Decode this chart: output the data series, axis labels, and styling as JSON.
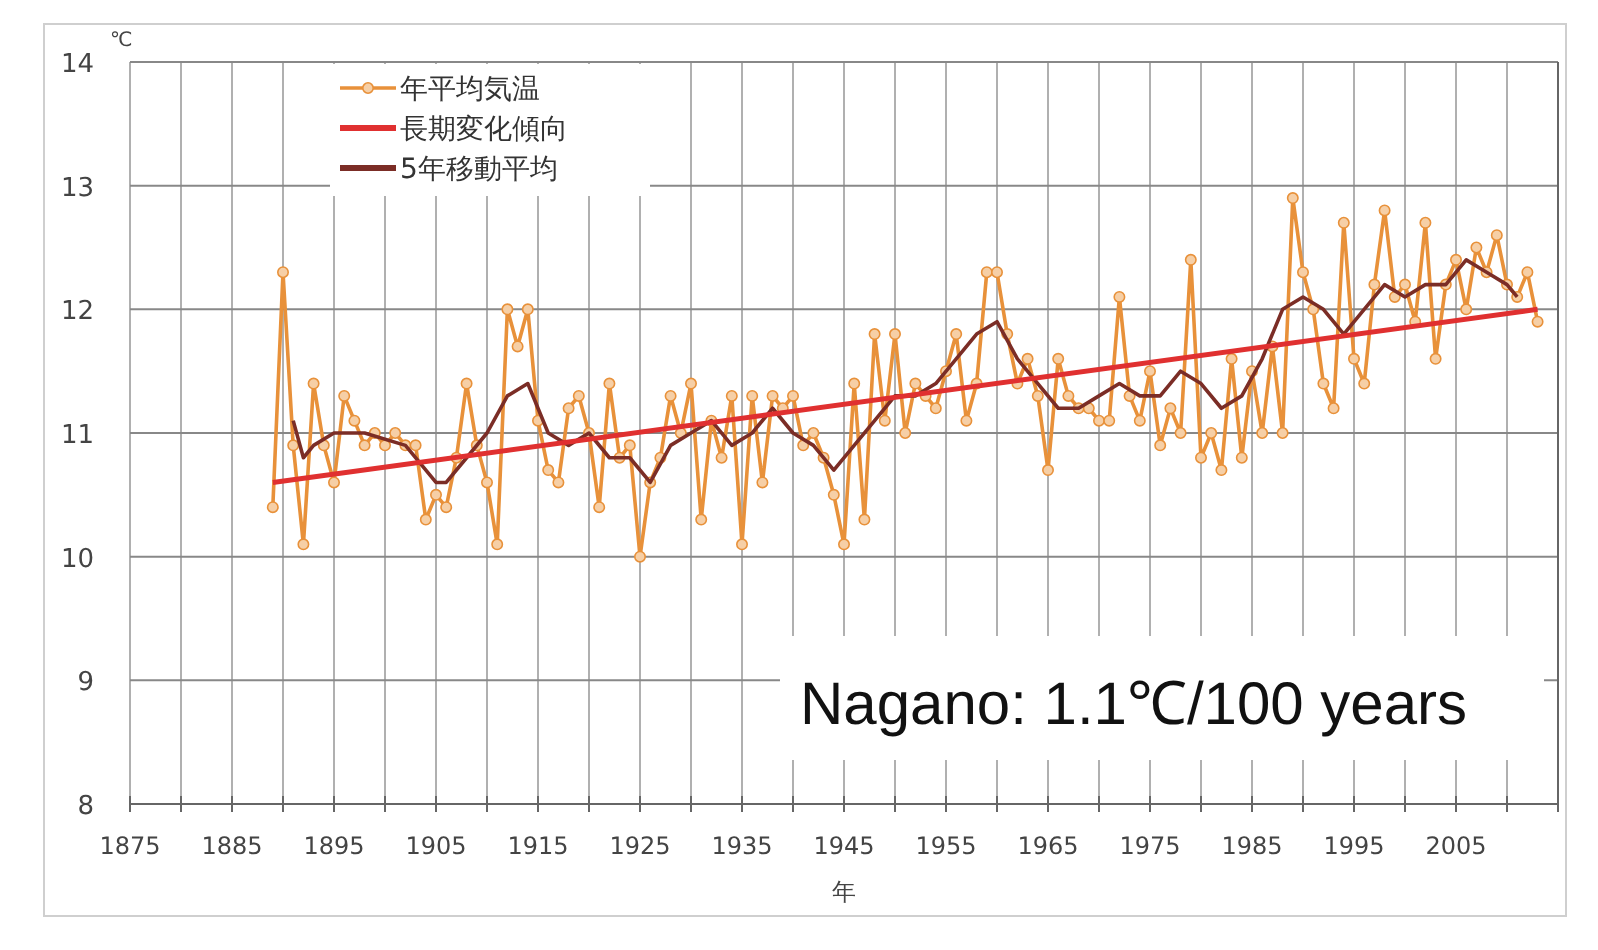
{
  "chart_data": {
    "type": "line",
    "ylabel": "℃",
    "xlabel": "年",
    "annotations": [
      "Nagano: 1.1℃/100 years"
    ],
    "xlim": [
      1875,
      2015
    ],
    "xticks": [
      1875,
      {
        "value": 1880,
        "label": null
      },
      1885,
      {
        "value": 1890,
        "label": null
      },
      1895,
      {
        "value": 1900,
        "label": null
      },
      1905,
      {
        "value": 1910,
        "label": null
      },
      1915,
      {
        "value": 1920,
        "label": null
      },
      1925,
      {
        "value": 1930,
        "label": null
      },
      1935,
      {
        "value": 1940,
        "label": null
      },
      1945,
      {
        "value": 1950,
        "label": null
      },
      1955,
      {
        "value": 1960,
        "label": null
      },
      1965,
      {
        "value": 1970,
        "label": null
      },
      1975,
      {
        "value": 1980,
        "label": null
      },
      1985,
      {
        "value": 1990,
        "label": null
      },
      1995,
      {
        "value": 2000,
        "label": null
      },
      2005,
      {
        "value": 2010,
        "label": null
      },
      {
        "value": 2015,
        "label": null
      }
    ],
    "ylim": [
      8,
      14
    ],
    "yticks": [
      8,
      9,
      10,
      11,
      12,
      13,
      14
    ],
    "grid": true,
    "legend": "top left",
    "line_style": "solid",
    "series": [
      {
        "name": "年平均気温",
        "color": "#e8913a",
        "marker": "circle",
        "x": [
          1889,
          1890,
          1891,
          1892,
          1893,
          1894,
          1895,
          1896,
          1897,
          1898,
          1899,
          1900,
          1901,
          1902,
          1903,
          1904,
          1905,
          1906,
          1907,
          1908,
          1909,
          1910,
          1911,
          1912,
          1913,
          1914,
          1915,
          1916,
          1917,
          1918,
          1919,
          1920,
          1921,
          1922,
          1923,
          1924,
          1925,
          1926,
          1927,
          1928,
          1929,
          1930,
          1931,
          1932,
          1933,
          1934,
          1935,
          1936,
          1937,
          1938,
          1939,
          1940,
          1941,
          1942,
          1943,
          1944,
          1945,
          1946,
          1947,
          1948,
          1949,
          1950,
          1951,
          1952,
          1953,
          1954,
          1955,
          1956,
          1957,
          1958,
          1959,
          1960,
          1961,
          1962,
          1963,
          1964,
          1965,
          1966,
          1967,
          1968,
          1969,
          1970,
          1971,
          1972,
          1973,
          1974,
          1975,
          1976,
          1977,
          1978,
          1979,
          1980,
          1981,
          1982,
          1983,
          1984,
          1985,
          1986,
          1987,
          1988,
          1989,
          1990,
          1991,
          1992,
          1993,
          1994,
          1995,
          1996,
          1997,
          1998,
          1999,
          2000,
          2001,
          2002,
          2003,
          2004,
          2005,
          2006,
          2007,
          2008,
          2009,
          2010,
          2011,
          2012,
          2013
        ],
        "values": [
          10.4,
          12.3,
          10.9,
          10.1,
          11.4,
          10.9,
          10.6,
          11.3,
          11.1,
          10.9,
          11.0,
          10.9,
          11.0,
          10.9,
          10.9,
          10.3,
          10.5,
          10.4,
          10.8,
          11.4,
          10.9,
          10.6,
          10.1,
          12.0,
          11.7,
          12.0,
          11.1,
          10.7,
          10.6,
          11.2,
          11.3,
          11.0,
          10.4,
          11.4,
          10.8,
          10.9,
          10.0,
          10.6,
          10.8,
          11.3,
          11.0,
          11.4,
          10.3,
          11.1,
          10.8,
          11.3,
          10.1,
          11.3,
          10.6,
          11.3,
          11.2,
          11.3,
          10.9,
          11.0,
          10.8,
          10.5,
          10.1,
          11.4,
          10.3,
          11.8,
          11.1,
          11.8,
          11.0,
          11.4,
          11.3,
          11.2,
          11.5,
          11.8,
          11.1,
          11.4,
          12.3,
          12.3,
          11.8,
          11.4,
          11.6,
          11.3,
          10.7,
          11.6,
          11.3,
          11.2,
          11.2,
          11.1,
          11.1,
          12.1,
          11.3,
          11.1,
          11.5,
          10.9,
          11.2,
          11.0,
          12.4,
          10.8,
          11.0,
          10.7,
          11.6,
          10.8,
          11.5,
          11.0,
          11.7,
          11.0,
          12.9,
          12.3,
          12.0,
          11.4,
          11.2,
          12.7,
          11.6,
          11.4,
          12.2,
          12.8,
          12.1,
          12.2,
          11.9,
          12.7,
          11.6,
          12.2,
          12.4,
          12.0,
          12.5,
          12.3,
          12.6,
          12.2,
          12.1,
          12.3,
          11.9
        ]
      },
      {
        "name": "長期変化傾向",
        "color": "#e03030",
        "marker": "none",
        "x": [
          1889,
          2013
        ],
        "values": [
          10.6,
          12.0
        ]
      },
      {
        "name": "5年移動平均",
        "color": "#7b2d26",
        "marker": "none",
        "x": [
          1891,
          1892,
          1893,
          1895,
          1898,
          1902,
          1905,
          1906,
          1908,
          1910,
          1912,
          1914,
          1916,
          1918,
          1920,
          1922,
          1924,
          1926,
          1928,
          1930,
          1932,
          1934,
          1936,
          1938,
          1940,
          1942,
          1944,
          1946,
          1948,
          1950,
          1952,
          1954,
          1956,
          1958,
          1960,
          1962,
          1964,
          1966,
          1968,
          1970,
          1972,
          1974,
          1976,
          1978,
          1980,
          1982,
          1984,
          1986,
          1988,
          1990,
          1992,
          1994,
          1996,
          1998,
          2000,
          2002,
          2004,
          2006,
          2008,
          2010,
          2011
        ],
        "values": [
          11.1,
          10.8,
          10.9,
          11.0,
          11.0,
          10.9,
          10.6,
          10.6,
          10.8,
          11.0,
          11.3,
          11.4,
          11.0,
          10.9,
          11.0,
          10.8,
          10.8,
          10.6,
          10.9,
          11.0,
          11.1,
          10.9,
          11.0,
          11.2,
          11.0,
          10.9,
          10.7,
          10.9,
          11.1,
          11.3,
          11.3,
          11.4,
          11.6,
          11.8,
          11.9,
          11.6,
          11.4,
          11.2,
          11.2,
          11.3,
          11.4,
          11.3,
          11.3,
          11.5,
          11.4,
          11.2,
          11.3,
          11.6,
          12.0,
          12.1,
          12.0,
          11.8,
          12.0,
          12.2,
          12.1,
          12.2,
          12.2,
          12.4,
          12.3,
          12.2,
          12.1
        ]
      }
    ]
  }
}
